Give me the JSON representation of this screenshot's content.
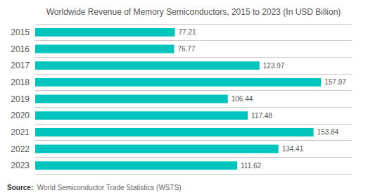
{
  "chart_data": {
    "type": "bar",
    "orientation": "horizontal",
    "title": "Worldwide Revenue of Memory Semiconductors, 2015 to 2023 (In USD Billion)",
    "categories": [
      "2015",
      "2016",
      "2017",
      "2018",
      "2019",
      "2020",
      "2021",
      "2022",
      "2023"
    ],
    "values": [
      77.21,
      76.77,
      123.97,
      157.97,
      106.44,
      117.48,
      153.84,
      134.41,
      111.62
    ],
    "color": "#00C5BE",
    "xlim": [
      0,
      175
    ],
    "data_labels": true,
    "tick_labels": "y",
    "grid": true,
    "annotations": [
      "Source:",
      "World Semiconductor Trade Statistics (WSTS)"
    ]
  }
}
